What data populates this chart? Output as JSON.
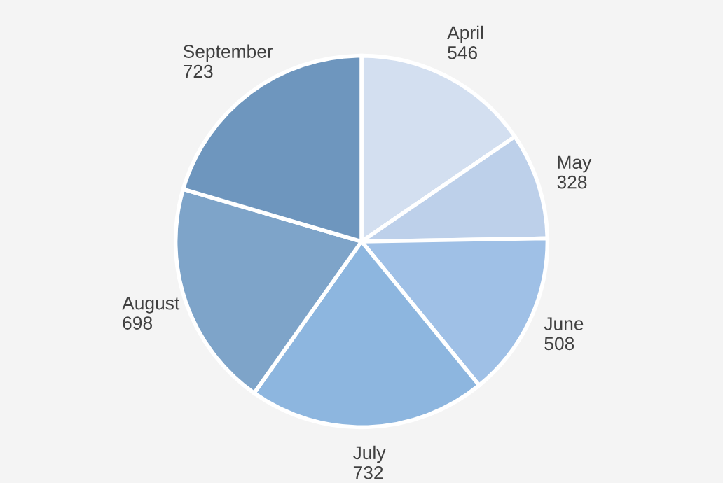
{
  "chart_data": {
    "type": "pie",
    "categories": [
      "April",
      "May",
      "June",
      "July",
      "August",
      "September"
    ],
    "values": [
      546,
      328,
      508,
      732,
      698,
      723
    ],
    "colors": [
      "#d3dff0",
      "#bdd0ea",
      "#9fc0e6",
      "#8db6df",
      "#7ea4c9",
      "#6e96be"
    ],
    "data_labels": true,
    "legend": false
  }
}
